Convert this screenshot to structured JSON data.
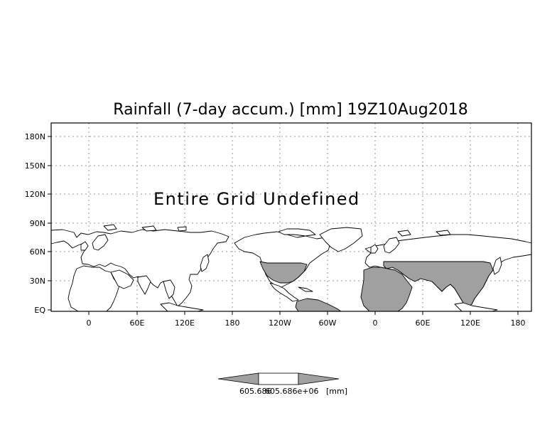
{
  "map": {
    "title": "Rainfall (7-day accum.) [mm] 19Z10Aug2018",
    "annotation": "Entire Grid Undefined",
    "lat_labels": [
      "180N",
      "150N",
      "120N",
      "90N",
      "60N",
      "30N",
      "EQ"
    ],
    "lon_labels": [
      "0",
      "60E",
      "120E",
      "180",
      "120W",
      "60W",
      "0",
      "60E",
      "120E",
      "180"
    ],
    "colorbar": {
      "left_value": "605.686",
      "right_value": "605.686e+06",
      "unit": "[mm]"
    },
    "colors": {
      "land_shaded": "#a0a0a0",
      "gridline": "#9a9a9a",
      "frame": "#000000"
    }
  }
}
